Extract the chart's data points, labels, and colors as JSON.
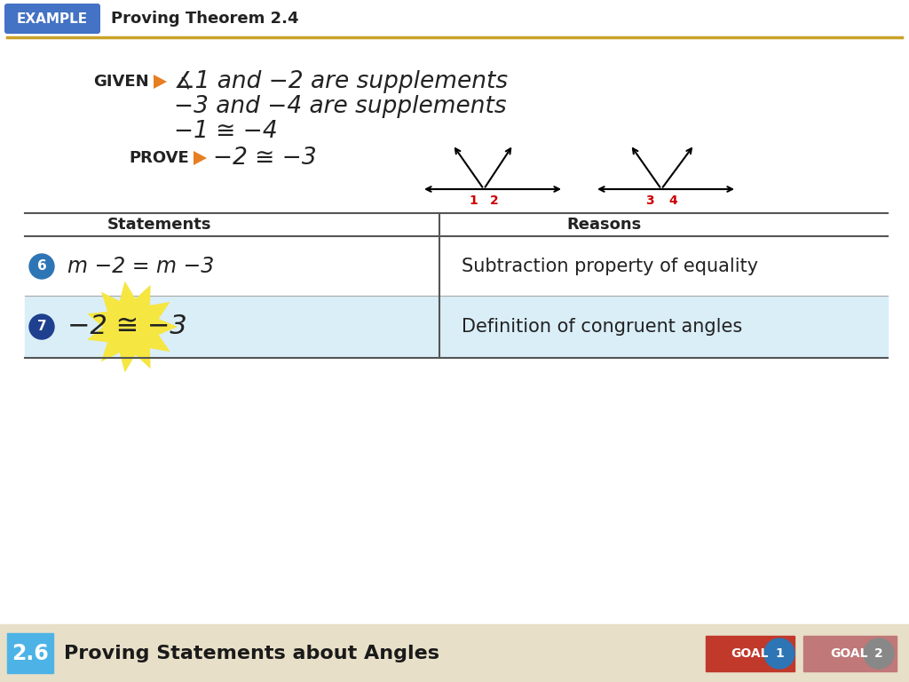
{
  "bg_color": "#ffffff",
  "footer_bg": "#e8dfc8",
  "header_example_bg": "#4472c4",
  "header_example_text": "EXAMPLE",
  "header_title": "Proving Theorem 2.4",
  "header_line_color": "#c9a227",
  "given_label": "GIVEN",
  "prove_label": "PROVE",
  "given_lines": [
    "∡1 and −2 are supplements",
    "−3 and −4 are supplements",
    "−1 ≅ −4"
  ],
  "prove_line": "−2 ≅ −3",
  "table_header_statements": "Statements",
  "table_header_reasons": "Reasons",
  "row6_statement": "m −2 = m −3",
  "row6_reason": "Subtraction property of equality",
  "row7_statement": "−2 ≅ −3",
  "row7_reason": "Definition of congruent angles",
  "row7_highlight": "#daeef8",
  "circle6_color": "#2e75b6",
  "circle7_color": "#1f3f8f",
  "footer_number": "2.6",
  "footer_text": "Proving Statements about Angles",
  "footer_num_bg": "#4db3e6",
  "goal1_color": "#c0392b",
  "goal2_color": "#c07878",
  "goal1_circle_color": "#2e75b6",
  "goal2_circle_color": "#888888",
  "orange_triangle_color": "#e67e22",
  "angle_number_color": "#cc0000",
  "burst_color": "#f5e642"
}
